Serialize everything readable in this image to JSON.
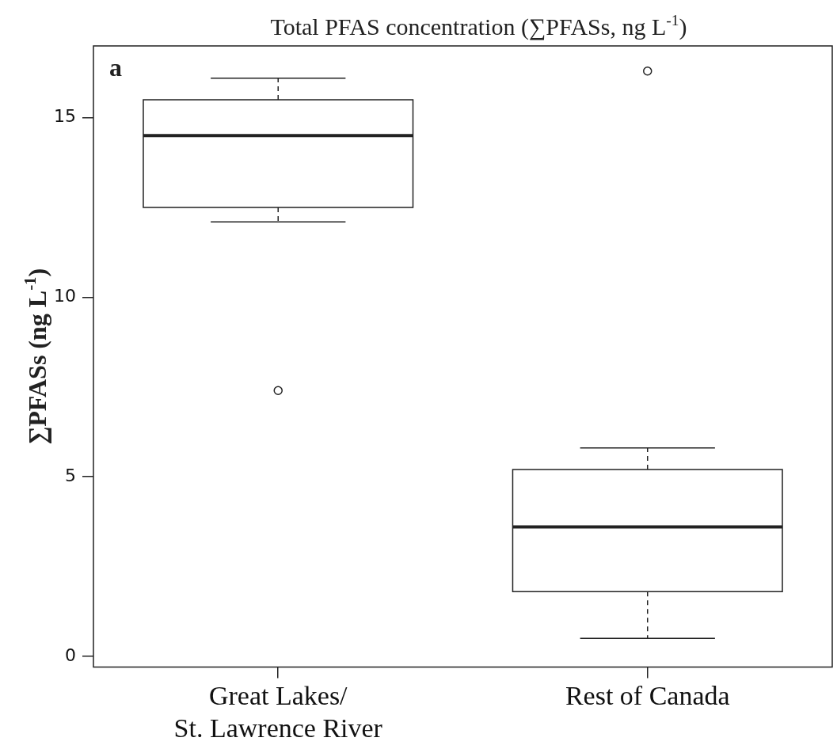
{
  "chart_data": {
    "type": "box",
    "title": "Total PFAS concentration (∑PFASs, ng L$^{-1}$)",
    "ylabel": "∑PFASs (ng L$^{-1}$)",
    "categories": [
      "Great Lakes/\nSt. Lawrence River",
      "Rest of Canada"
    ],
    "boxes": [
      {
        "low": 12.1,
        "q1": 12.5,
        "median": 14.5,
        "q3": 15.5,
        "high": 16.1,
        "outliers": [
          7.4
        ]
      },
      {
        "low": 0.5,
        "q1": 1.8,
        "median": 3.6,
        "q3": 5.2,
        "high": 5.8,
        "outliers": [
          16.3
        ]
      }
    ],
    "ylim": [
      -0.3,
      17
    ],
    "yticks": [
      0,
      5,
      10,
      15
    ],
    "grid": false,
    "legend": false,
    "annotations": [
      "a"
    ]
  }
}
